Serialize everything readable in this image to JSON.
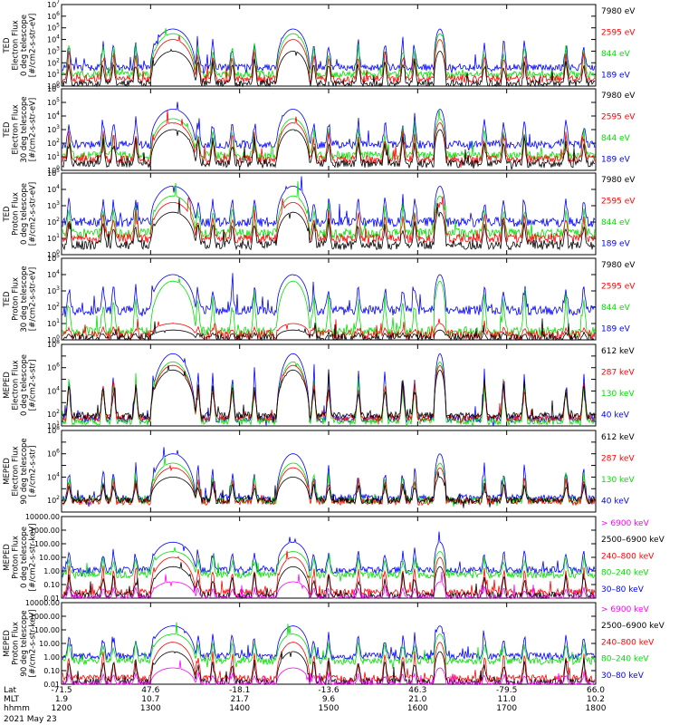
{
  "colors": {
    "black": "#000000",
    "red": "#ff0000",
    "green": "#00e000",
    "blue": "#0000ff",
    "magenta": "#ff00ff"
  },
  "chart_data": [
    {
      "type": "line",
      "id": "p1",
      "log": true,
      "ylim_exp": [
        0,
        7
      ],
      "yticks": [
        "10^0",
        "10^1",
        "10^2",
        "10^3",
        "10^4",
        "10^5",
        "10^6",
        "10^7"
      ],
      "ylabel": [
        "TED",
        "Electron Flux",
        "0 deg telescope",
        "[#/cm2-s-str-eV]"
      ],
      "legend": [
        {
          "label": "7980 eV",
          "color": "black"
        },
        {
          "label": "2595 eV",
          "color": "red"
        },
        {
          "label": "844 eV",
          "color": "green"
        },
        {
          "label": "189 eV",
          "color": "blue"
        }
      ],
      "series": [
        {
          "name": "189 eV",
          "color": "blue",
          "base": 1.6,
          "peak": 4.9
        },
        {
          "name": "844 eV",
          "color": "green",
          "base": 1.0,
          "peak": 4.5
        },
        {
          "name": "2595 eV",
          "color": "red",
          "base": 0.6,
          "peak": 4.0
        },
        {
          "name": "7980 eV",
          "color": "black",
          "base": 0.2,
          "peak": 3.0
        }
      ]
    },
    {
      "type": "line",
      "id": "p2",
      "log": true,
      "ylim_exp": [
        0,
        6
      ],
      "yticks": [
        "10^0",
        "10^1",
        "10^2",
        "10^3",
        "10^4",
        "10^5",
        "10^6"
      ],
      "ylabel": [
        "TED",
        "Electron Flux",
        "30 deg telescope",
        "[#/cm2-s-str-eV]"
      ],
      "legend": [
        {
          "label": "7980 eV",
          "color": "black"
        },
        {
          "label": "2595 eV",
          "color": "red"
        },
        {
          "label": "844 eV",
          "color": "green"
        },
        {
          "label": "189 eV",
          "color": "blue"
        }
      ],
      "series": [
        {
          "name": "189 eV",
          "color": "blue",
          "base": 1.9,
          "peak": 4.5
        },
        {
          "name": "844 eV",
          "color": "green",
          "base": 1.1,
          "peak": 3.8
        },
        {
          "name": "2595 eV",
          "color": "red",
          "base": 0.8,
          "peak": 3.5
        },
        {
          "name": "7980 eV",
          "color": "black",
          "base": 0.5,
          "peak": 3.0
        }
      ]
    },
    {
      "type": "line",
      "id": "p3",
      "log": true,
      "ylim_exp": [
        0,
        5
      ],
      "yticks": [
        "10^0",
        "10^1",
        "10^2",
        "10^3",
        "10^4",
        "10^5"
      ],
      "ylabel": [
        "TED",
        "Proton Flux",
        "0 deg telescope",
        "[#/cm2-s-str-eV]"
      ],
      "legend": [
        {
          "label": "7980 eV",
          "color": "black"
        },
        {
          "label": "2595 eV",
          "color": "red"
        },
        {
          "label": "844 eV",
          "color": "green"
        },
        {
          "label": "189 eV",
          "color": "blue"
        }
      ],
      "series": [
        {
          "name": "189 eV",
          "color": "blue",
          "base": 2.0,
          "peak": 4.2
        },
        {
          "name": "844 eV",
          "color": "green",
          "base": 1.3,
          "peak": 3.6
        },
        {
          "name": "2595 eV",
          "color": "red",
          "base": 1.0,
          "peak": 3.2
        },
        {
          "name": "7980 eV",
          "color": "black",
          "base": 0.6,
          "peak": 2.6
        }
      ]
    },
    {
      "type": "line",
      "id": "p4",
      "log": true,
      "ylim_exp": [
        0,
        5
      ],
      "yticks": [
        "10^0",
        "10^1",
        "10^2",
        "10^3",
        "10^4",
        "10^5"
      ],
      "ylabel": [
        "TED",
        "Proton Flux",
        "30 deg telescope",
        "[#/cm2-s-str-eV]"
      ],
      "legend": [
        {
          "label": "7980 eV",
          "color": "black"
        },
        {
          "label": "2595 eV",
          "color": "red"
        },
        {
          "label": "844 eV",
          "color": "green"
        },
        {
          "label": "189 eV",
          "color": "blue"
        }
      ],
      "series": [
        {
          "name": "189 eV",
          "color": "blue",
          "base": 1.8,
          "peak": 4.0
        },
        {
          "name": "844 eV",
          "color": "green",
          "base": 0.5,
          "peak": 3.6
        },
        {
          "name": "2595 eV",
          "color": "red",
          "base": 0.3,
          "peak": 1.0
        },
        {
          "name": "7980 eV",
          "color": "black",
          "base": 0.1,
          "peak": 0.6
        }
      ]
    },
    {
      "type": "line",
      "id": "p5",
      "log": true,
      "ylim_exp": [
        1,
        8
      ],
      "yticks": [
        "10^1",
        "10^2",
        "",
        "10^4",
        "",
        "10^6",
        "",
        "10^8"
      ],
      "ylabel": [
        "MEPED",
        "Electron Flux",
        "0 deg telescope",
        "[#/cm2-s-str]"
      ],
      "legend": [
        {
          "label": "612 keV",
          "color": "black"
        },
        {
          "label": "287 keV",
          "color": "red"
        },
        {
          "label": "130 keV",
          "color": "green"
        },
        {
          "label": "40 keV",
          "color": "blue"
        }
      ],
      "series": [
        {
          "name": "40 keV",
          "color": "blue",
          "base": 1.6,
          "peak": 7.2
        },
        {
          "name": "130 keV",
          "color": "green",
          "base": 1.4,
          "peak": 6.5
        },
        {
          "name": "287 keV",
          "color": "red",
          "base": 1.7,
          "peak": 6.2
        },
        {
          "name": "612 keV",
          "color": "black",
          "base": 1.9,
          "peak": 5.8
        }
      ]
    },
    {
      "type": "line",
      "id": "p6",
      "log": true,
      "ylim_exp": [
        1,
        8
      ],
      "yticks": [
        "",
        "10^2",
        "",
        "10^4",
        "",
        "10^6",
        "",
        "10^8"
      ],
      "ylabel": [
        "MEPED",
        "Electron Flux",
        "90 deg telescope",
        "[#/cm2-s-str]"
      ],
      "legend": [
        {
          "label": "612 keV",
          "color": "black"
        },
        {
          "label": "287 keV",
          "color": "red"
        },
        {
          "label": "130 keV",
          "color": "green"
        },
        {
          "label": "40 keV",
          "color": "blue"
        }
      ],
      "series": [
        {
          "name": "40 keV",
          "color": "blue",
          "base": 2.2,
          "peak": 6.0
        },
        {
          "name": "130 keV",
          "color": "green",
          "base": 2.0,
          "peak": 5.2
        },
        {
          "name": "287 keV",
          "color": "red",
          "base": 1.9,
          "peak": 4.8
        },
        {
          "name": "612 keV",
          "color": "black",
          "base": 2.0,
          "peak": 4.0
        }
      ]
    },
    {
      "type": "line",
      "id": "p7",
      "log": true,
      "ylim_exp": [
        -2,
        5
      ],
      "yticks": [
        "0.01",
        "0.10",
        "1.00",
        "10.00",
        "100.00",
        "1000.00",
        "10000.00"
      ],
      "ylabel": [
        "MEPED",
        "Proton Flux",
        "0 deg telescope",
        "[#/cm2-s-str-keV]"
      ],
      "legend": [
        {
          "label": "> 6900 keV",
          "color": "magenta"
        },
        {
          "label": "2500–6900 keV",
          "color": "black"
        },
        {
          "label": "240–800 keV",
          "color": "red"
        },
        {
          "label": "80–240 keV",
          "color": "green"
        },
        {
          "label": "30–80 keV",
          "color": "blue"
        }
      ],
      "series": [
        {
          "name": "30–80 keV",
          "color": "blue",
          "base": 0.4,
          "peak": 2.8
        },
        {
          "name": "80–240 keV",
          "color": "green",
          "base": 0.0,
          "peak": 2.0
        },
        {
          "name": "240–800 keV",
          "color": "red",
          "base": -1.5,
          "peak": 1.5
        },
        {
          "name": "2500–6900 keV",
          "color": "black",
          "base": -1.8,
          "peak": 0.7
        },
        {
          "name": "> 6900 keV",
          "color": "magenta",
          "base": -2.0,
          "peak": -0.6
        }
      ]
    },
    {
      "type": "line",
      "id": "p8",
      "log": true,
      "ylim_exp": [
        -2,
        5
      ],
      "yticks": [
        "0.01",
        "0.10",
        "1.00",
        "10.00",
        "100.00",
        "1000.00",
        "10000.00"
      ],
      "ylabel": [
        "MEPED",
        "Proton Flux",
        "90 deg telescope",
        "[#/cm2-s-str-keV]"
      ],
      "legend": [
        {
          "label": "> 6900 keV",
          "color": "magenta"
        },
        {
          "label": "2500–6900 keV",
          "color": "black"
        },
        {
          "label": "240–800 keV",
          "color": "red"
        },
        {
          "label": "80–240 keV",
          "color": "green"
        },
        {
          "label": "30–80 keV",
          "color": "blue"
        }
      ],
      "series": [
        {
          "name": "30–80 keV",
          "color": "blue",
          "base": 0.4,
          "peak": 3.0
        },
        {
          "name": "80–240 keV",
          "color": "green",
          "base": 0.0,
          "peak": 2.3
        },
        {
          "name": "240–800 keV",
          "color": "red",
          "base": -1.5,
          "peak": 1.6
        },
        {
          "name": "2500–6900 keV",
          "color": "black",
          "base": -1.8,
          "peak": 0.8
        },
        {
          "name": "> 6900 keV",
          "color": "magenta",
          "base": -2.0,
          "peak": -0.6
        }
      ]
    }
  ],
  "xaxis": {
    "row_labels": [
      "Lat",
      "MLT",
      "hhmm"
    ],
    "ticks": [
      {
        "lat": "-71.5",
        "mlt": "1.9",
        "hhmm": "1200"
      },
      {
        "lat": "47.6",
        "mlt": "10.7",
        "hhmm": "1300"
      },
      {
        "lat": "-18.1",
        "mlt": "21.7",
        "hhmm": "1400"
      },
      {
        "lat": "-13.6",
        "mlt": "9.6",
        "hhmm": "1500"
      },
      {
        "lat": "46.3",
        "mlt": "21.0",
        "hhmm": "1600"
      },
      {
        "lat": "-79.5",
        "mlt": "11.0",
        "hhmm": "1700"
      },
      {
        "lat": "66.0",
        "mlt": "10.2",
        "hhmm": "1800"
      }
    ],
    "time_range_min": [
      0,
      360
    ],
    "date": "2021 May 23"
  },
  "events": {
    "passes_min": [
      [
        75,
        15
      ],
      [
        156,
        11
      ],
      [
        255,
        4
      ]
    ],
    "bursts_min": [
      5,
      28,
      35,
      50,
      62,
      92,
      102,
      115,
      130,
      170,
      180,
      200,
      218,
      230,
      238,
      285,
      298,
      312,
      340,
      352
    ]
  }
}
